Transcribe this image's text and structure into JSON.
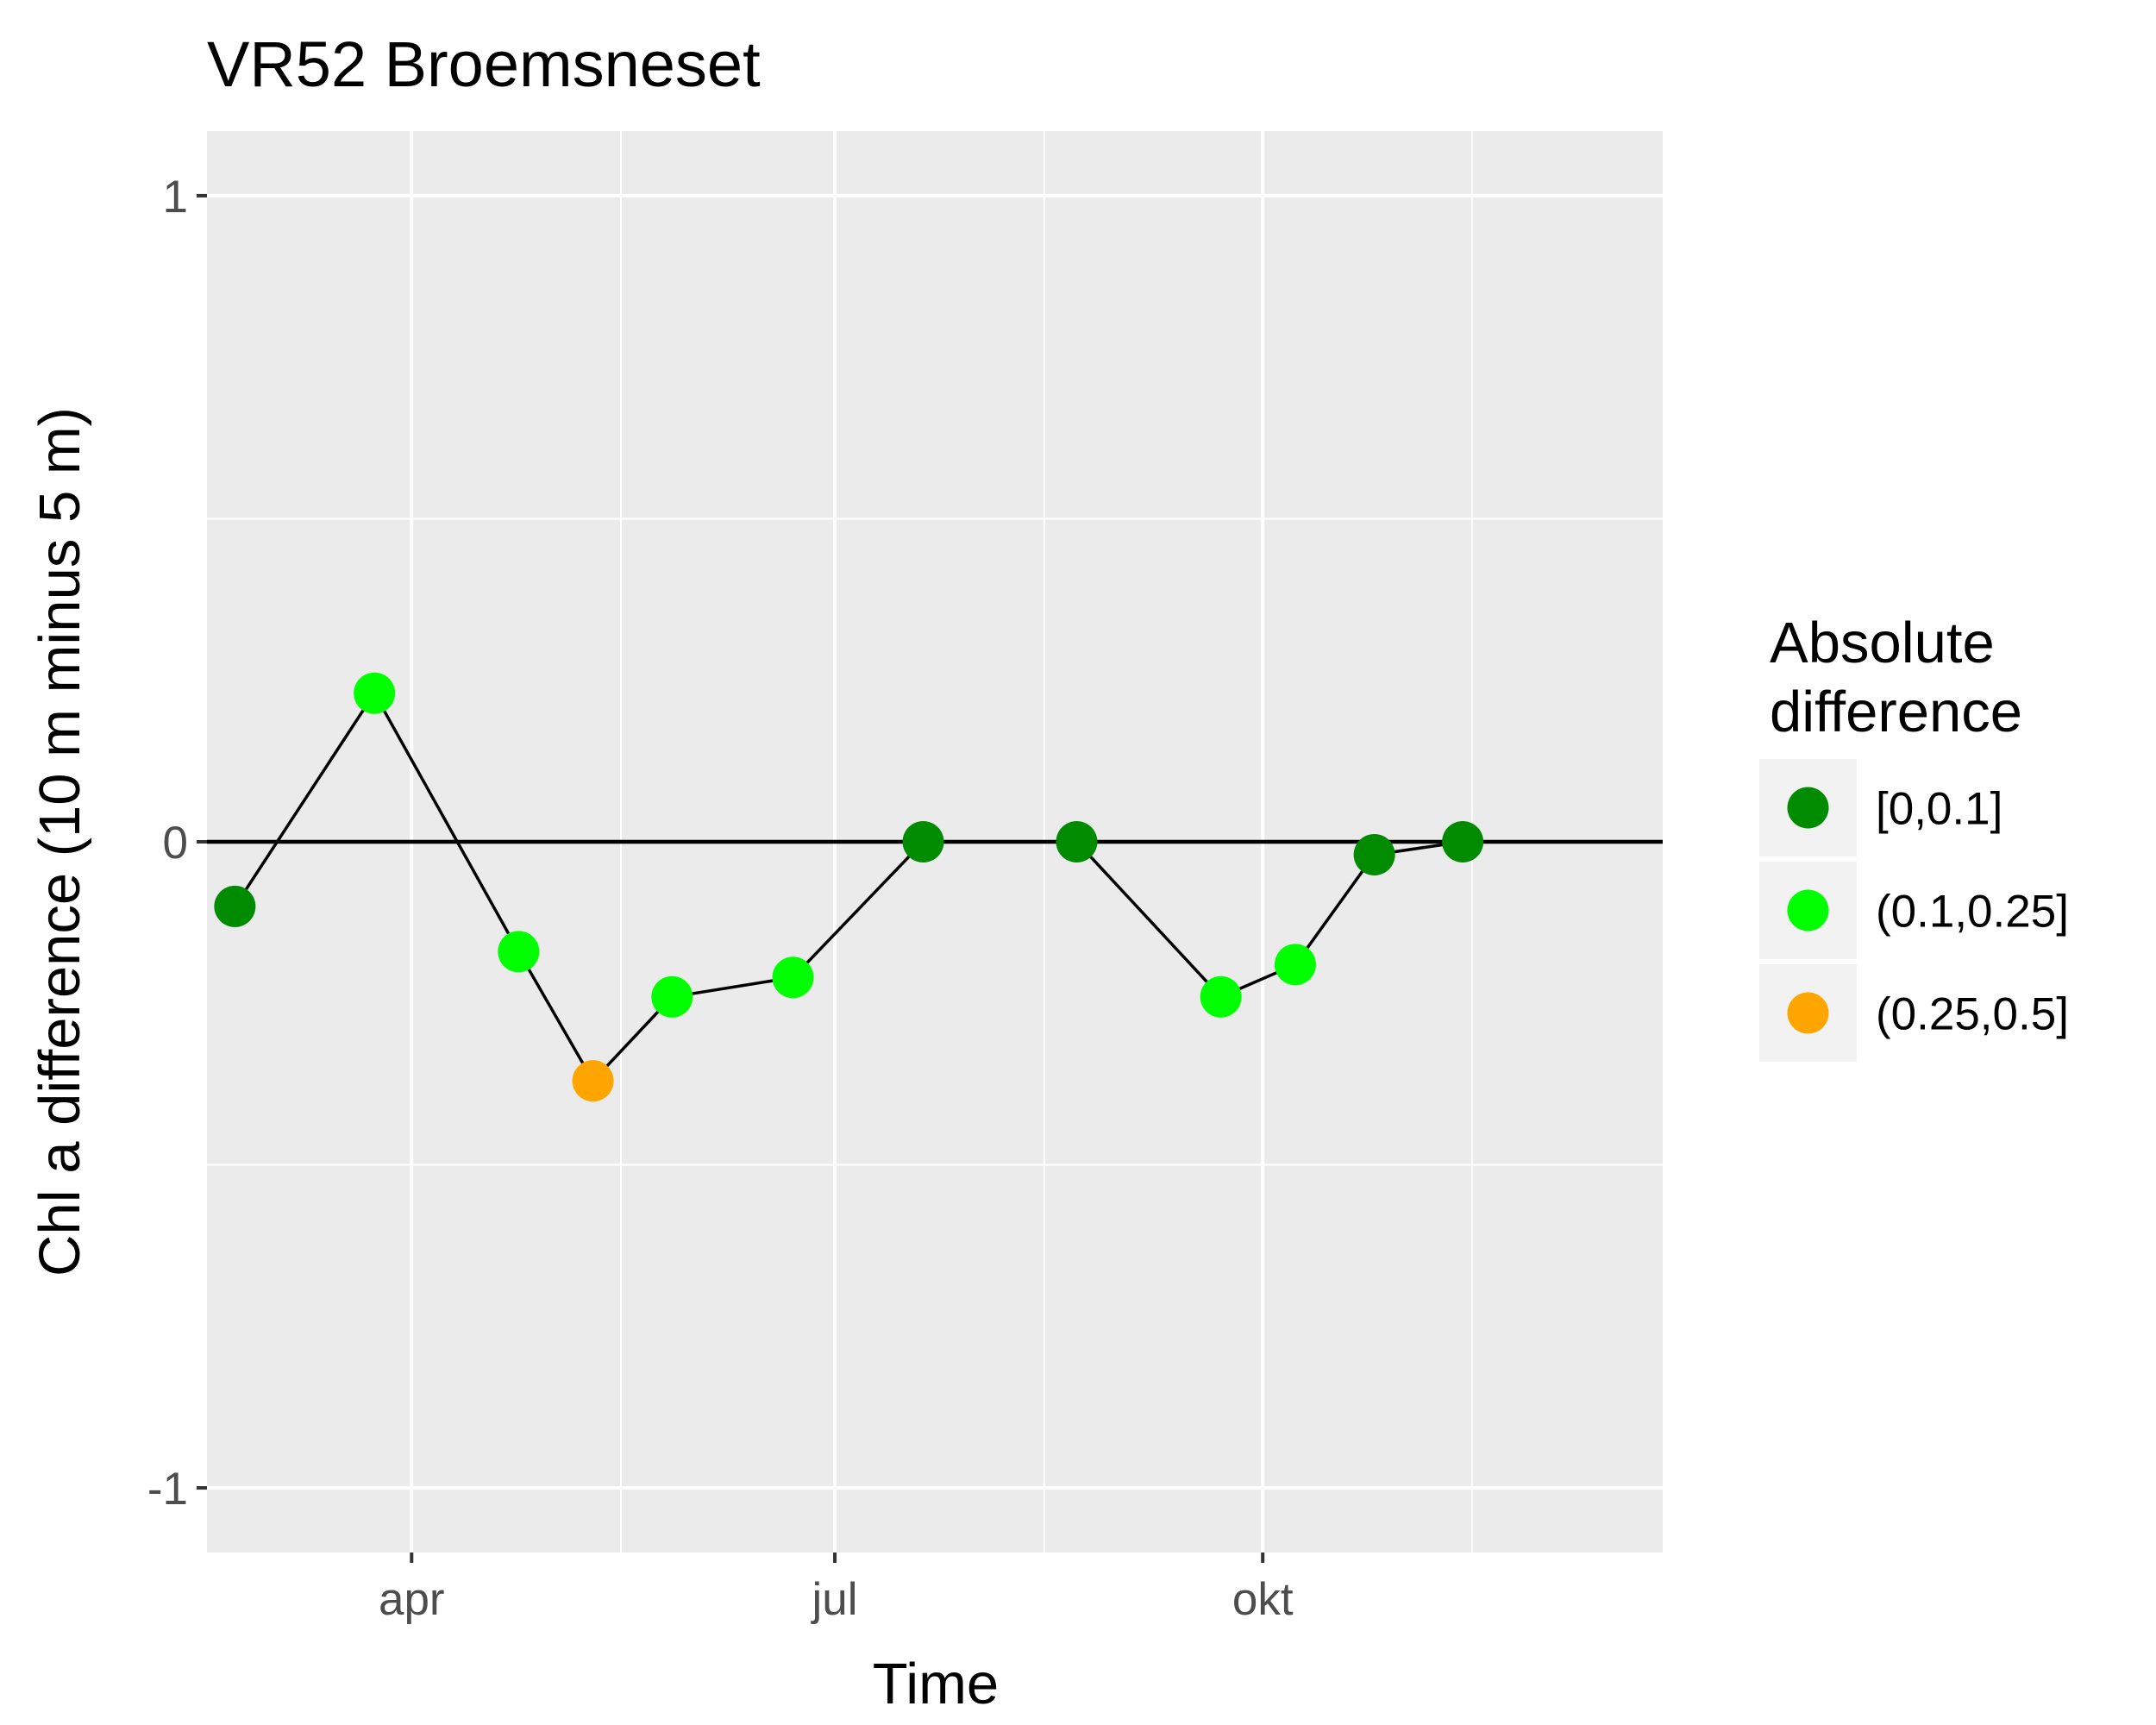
{
  "chart_data": {
    "type": "scatter",
    "title": "VR52 Broemsneset",
    "xlabel": "Time",
    "ylabel": "Chl a difference (10 m minus 5 m)",
    "ylim": [
      -1.1,
      1.1
    ],
    "xlim": [
      "2017-02-16",
      "2017-12-26"
    ],
    "x_ticks": [
      {
        "date": "2017-04-01",
        "label": "apr"
      },
      {
        "date": "2017-07-01",
        "label": "jul"
      },
      {
        "date": "2017-10-01",
        "label": "okt"
      }
    ],
    "x_minor_ticks": [
      "2017-02-15",
      "2017-05-16",
      "2017-08-15",
      "2017-11-15"
    ],
    "y_ticks": [
      {
        "value": 1,
        "label": "1"
      },
      {
        "value": 0,
        "label": "0"
      },
      {
        "value": -1,
        "label": "-1"
      }
    ],
    "y_minor_ticks": [
      -0.5,
      0.5
    ],
    "reference_line": {
      "y": 0,
      "color": "#000000"
    },
    "connected": true,
    "grid": true,
    "legend": {
      "position": "right",
      "title_lines": [
        "Absolute",
        "difference"
      ],
      "entries": [
        {
          "label": "[0,0.1]",
          "color": "#008b00"
        },
        {
          "label": "(0.1,0.25]",
          "color": "#00ff00"
        },
        {
          "label": "(0.25,0.5]",
          "color": "#ffa500"
        }
      ]
    },
    "points": [
      {
        "x": "2017-02-22",
        "y": -0.1,
        "class": "[0,0.1]"
      },
      {
        "x": "2017-03-24",
        "y": 0.23,
        "class": "(0.1,0.25]"
      },
      {
        "x": "2017-04-24",
        "y": -0.17,
        "class": "(0.1,0.25]"
      },
      {
        "x": "2017-05-10",
        "y": -0.37,
        "class": "(0.25,0.5]"
      },
      {
        "x": "2017-05-27",
        "y": -0.24,
        "class": "(0.1,0.25]"
      },
      {
        "x": "2017-06-22",
        "y": -0.21,
        "class": "(0.1,0.25]"
      },
      {
        "x": "2017-07-20",
        "y": 0.0,
        "class": "[0,0.1]"
      },
      {
        "x": "2017-08-22",
        "y": 0.0,
        "class": "[0,0.1]"
      },
      {
        "x": "2017-09-22",
        "y": -0.24,
        "class": "(0.1,0.25]"
      },
      {
        "x": "2017-10-08",
        "y": -0.19,
        "class": "(0.1,0.25]"
      },
      {
        "x": "2017-10-25",
        "y": -0.02,
        "class": "[0,0.1]"
      },
      {
        "x": "2017-11-13",
        "y": 0.0,
        "class": "[0,0.1]"
      }
    ]
  }
}
